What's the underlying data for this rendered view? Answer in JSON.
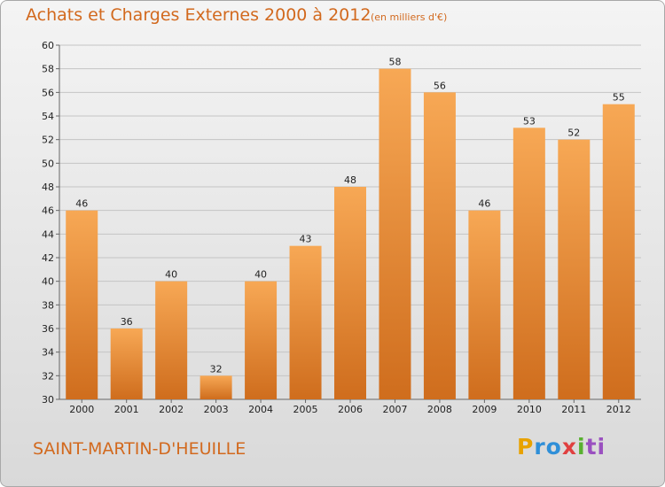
{
  "header": {
    "title": "Achats et Charges Externes 2000 à 2012",
    "subtitle": "(en milliers d'€)"
  },
  "footer": {
    "commune": "SAINT-MARTIN-D'HEUILLE",
    "logo": {
      "p1": "P",
      "p2": "ro",
      "p3": "x",
      "p4": "i",
      "p5": "ti"
    }
  },
  "colors": {
    "bar_top": "#f7a855",
    "bar_bottom": "#cf6d1d",
    "accent": "#d2691e"
  },
  "chart_data": {
    "type": "bar",
    "title": "Achats et Charges Externes 2000 à 2012",
    "subtitle": "(en milliers d'€)",
    "xlabel": "",
    "ylabel": "",
    "categories": [
      "2000",
      "2001",
      "2002",
      "2003",
      "2004",
      "2005",
      "2006",
      "2007",
      "2008",
      "2009",
      "2010",
      "2011",
      "2012"
    ],
    "values": [
      46,
      36,
      40,
      32,
      40,
      43,
      48,
      58,
      56,
      46,
      53,
      52,
      55
    ],
    "ylim": [
      30,
      60
    ],
    "yticks": [
      30,
      32,
      34,
      36,
      38,
      40,
      42,
      44,
      46,
      48,
      50,
      52,
      54,
      56,
      58,
      60
    ],
    "grid": true,
    "legend": "none"
  }
}
